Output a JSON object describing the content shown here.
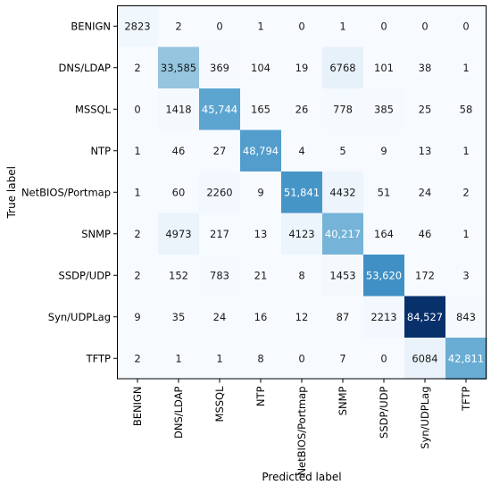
{
  "chart_data": {
    "type": "heatmap",
    "xlabel": "Predicted label",
    "ylabel": "True label",
    "x_categories": [
      "BENIGN",
      "DNS/LDAP",
      "MSSQL",
      "NTP",
      "NetBIOS/Portmap",
      "SNMP",
      "SSDP/UDP",
      "Syn/UDPLag",
      "TFTP"
    ],
    "y_categories": [
      "BENIGN",
      "DNS/LDAP",
      "MSSQL",
      "NTP",
      "NetBIOS/Portmap",
      "SNMP",
      "SSDP/UDP",
      "Syn/UDPLag",
      "TFTP"
    ],
    "values": [
      [
        2823,
        2,
        0,
        1,
        0,
        1,
        0,
        0,
        0
      ],
      [
        2,
        33585,
        369,
        104,
        19,
        6768,
        101,
        38,
        1
      ],
      [
        0,
        1418,
        45744,
        165,
        26,
        778,
        385,
        25,
        58
      ],
      [
        1,
        46,
        27,
        48794,
        4,
        5,
        9,
        13,
        1
      ],
      [
        1,
        60,
        2260,
        9,
        51841,
        4432,
        51,
        24,
        2
      ],
      [
        2,
        4973,
        217,
        13,
        4123,
        40217,
        164,
        46,
        1
      ],
      [
        2,
        152,
        783,
        21,
        8,
        1453,
        53620,
        172,
        3
      ],
      [
        9,
        35,
        24,
        16,
        12,
        87,
        2213,
        84527,
        843
      ],
      [
        2,
        1,
        1,
        8,
        0,
        7,
        0,
        6084,
        42811
      ]
    ],
    "colormap": "Blues",
    "color_range": [
      0,
      84527
    ],
    "grid": false,
    "colorbar": false
  }
}
